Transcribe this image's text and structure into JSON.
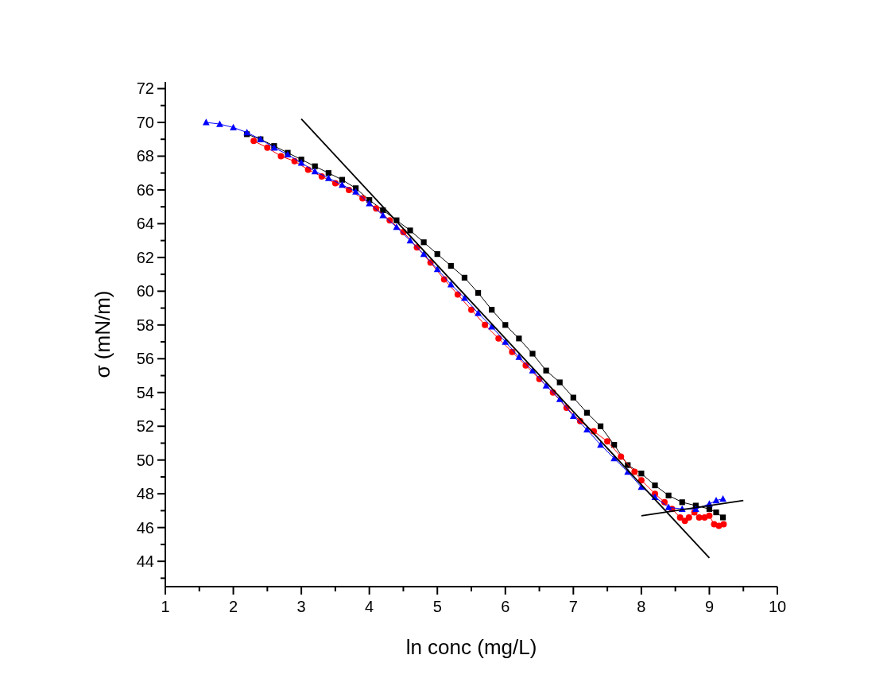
{
  "chart_data": {
    "type": "line",
    "xlabel": "ln conc (mg/L)",
    "ylabel": "σ (mN/m)",
    "xlim": [
      1,
      10
    ],
    "ylim": [
      42.5,
      72.4
    ],
    "xticks": [
      1,
      {
        "value": 1.5,
        "label": null
      },
      2,
      {
        "value": 2.5,
        "label": null
      },
      3,
      {
        "value": 3.5,
        "label": null
      },
      4,
      {
        "value": 4.5,
        "label": null
      },
      5,
      {
        "value": 5.5,
        "label": null
      },
      6,
      {
        "value": 6.5,
        "label": null
      },
      7,
      {
        "value": 7.5,
        "label": null
      },
      8,
      {
        "value": 8.5,
        "label": null
      },
      9,
      {
        "value": 9.5,
        "label": null
      },
      10
    ],
    "yticks": [
      {
        "value": 43,
        "label": null
      },
      44,
      {
        "value": 45,
        "label": null
      },
      46,
      {
        "value": 47,
        "label": null
      },
      48,
      {
        "value": 49,
        "label": null
      },
      50,
      {
        "value": 51,
        "label": null
      },
      52,
      {
        "value": 53,
        "label": null
      },
      54,
      {
        "value": 55,
        "label": null
      },
      56,
      {
        "value": 57,
        "label": null
      },
      58,
      {
        "value": 59,
        "label": null
      },
      60,
      {
        "value": 61,
        "label": null
      },
      62,
      {
        "value": 63,
        "label": null
      },
      64,
      {
        "value": 65,
        "label": null
      },
      66,
      {
        "value": 67,
        "label": null
      },
      68,
      {
        "value": 69,
        "label": null
      },
      70,
      {
        "value": 71,
        "label": null
      },
      72
    ],
    "series": [
      {
        "color": "#000000",
        "marker": "square",
        "x": [
          2.2,
          2.4,
          2.6,
          2.8,
          3.0,
          3.2,
          3.4,
          3.6,
          3.8,
          4.0,
          4.2,
          4.4,
          4.6,
          4.8,
          5.0,
          5.2,
          5.4,
          5.6,
          5.8,
          6.0,
          6.2,
          6.4,
          6.6,
          6.8,
          7.0,
          7.2,
          7.4,
          7.6,
          7.8,
          8.0,
          8.2,
          8.4,
          8.6,
          8.8,
          9.0,
          9.1,
          9.2
        ],
        "values": [
          69.3,
          69.0,
          68.6,
          68.2,
          67.8,
          67.4,
          67.0,
          66.6,
          66.1,
          65.4,
          64.8,
          64.2,
          63.6,
          62.9,
          62.2,
          61.5,
          60.8,
          59.9,
          58.9,
          58.0,
          57.2,
          56.3,
          55.3,
          54.6,
          53.7,
          52.8,
          52.0,
          50.9,
          49.7,
          49.2,
          48.5,
          47.9,
          47.5,
          47.3,
          47.1,
          46.9,
          46.6
        ]
      },
      {
        "color": "#ff0000",
        "marker": "circle",
        "x": [
          2.3,
          2.5,
          2.7,
          2.9,
          3.1,
          3.3,
          3.5,
          3.7,
          3.9,
          4.1,
          4.3,
          4.5,
          4.7,
          4.9,
          5.1,
          5.3,
          5.5,
          5.7,
          5.9,
          6.1,
          6.3,
          6.5,
          6.7,
          6.9,
          7.1,
          7.3,
          7.5,
          7.7,
          7.9,
          8.0,
          8.2,
          8.34,
          8.45,
          8.57,
          8.64,
          8.7,
          8.78,
          8.85,
          8.93,
          9.0,
          9.07,
          9.14,
          9.21
        ],
        "values": [
          68.9,
          68.5,
          68.0,
          67.7,
          67.2,
          66.8,
          66.4,
          66.0,
          65.5,
          64.9,
          64.2,
          63.5,
          62.6,
          61.7,
          60.7,
          59.8,
          58.9,
          58.0,
          57.2,
          56.4,
          55.6,
          54.8,
          54.0,
          53.1,
          52.3,
          51.7,
          51.1,
          50.2,
          49.3,
          48.8,
          48.0,
          47.5,
          47.1,
          46.6,
          46.4,
          46.6,
          46.9,
          46.6,
          46.6,
          46.7,
          46.2,
          46.1,
          46.2
        ]
      },
      {
        "color": "#0000ff",
        "marker": "triangle",
        "x": [
          1.6,
          1.8,
          2.0,
          2.2,
          2.4,
          2.6,
          2.8,
          3.0,
          3.2,
          3.4,
          3.6,
          3.8,
          4.0,
          4.2,
          4.4,
          4.6,
          4.8,
          5.0,
          5.2,
          5.4,
          5.6,
          5.8,
          6.0,
          6.2,
          6.4,
          6.6,
          6.8,
          7.0,
          7.2,
          7.4,
          7.6,
          7.8,
          8.0,
          8.2,
          8.4,
          8.6,
          8.8,
          9.0,
          9.1,
          9.2
        ],
        "values": [
          70.0,
          69.9,
          69.7,
          69.4,
          69.0,
          68.5,
          68.1,
          67.6,
          67.1,
          66.7,
          66.3,
          65.9,
          65.2,
          64.5,
          63.8,
          63.0,
          62.2,
          61.3,
          60.4,
          59.6,
          58.7,
          57.9,
          57.0,
          56.1,
          55.3,
          54.4,
          53.6,
          52.6,
          51.8,
          50.9,
          50.1,
          49.3,
          48.4,
          47.8,
          47.2,
          47.1,
          47.1,
          47.4,
          47.6,
          47.7
        ]
      },
      {
        "color": "#000000",
        "marker": "none",
        "x": [
          3,
          9
        ],
        "values": [
          70.2,
          44.2
        ]
      },
      {
        "color": "#000000",
        "marker": "none",
        "x": [
          8,
          9.5
        ],
        "values": [
          46.7,
          47.6
        ]
      }
    ]
  }
}
